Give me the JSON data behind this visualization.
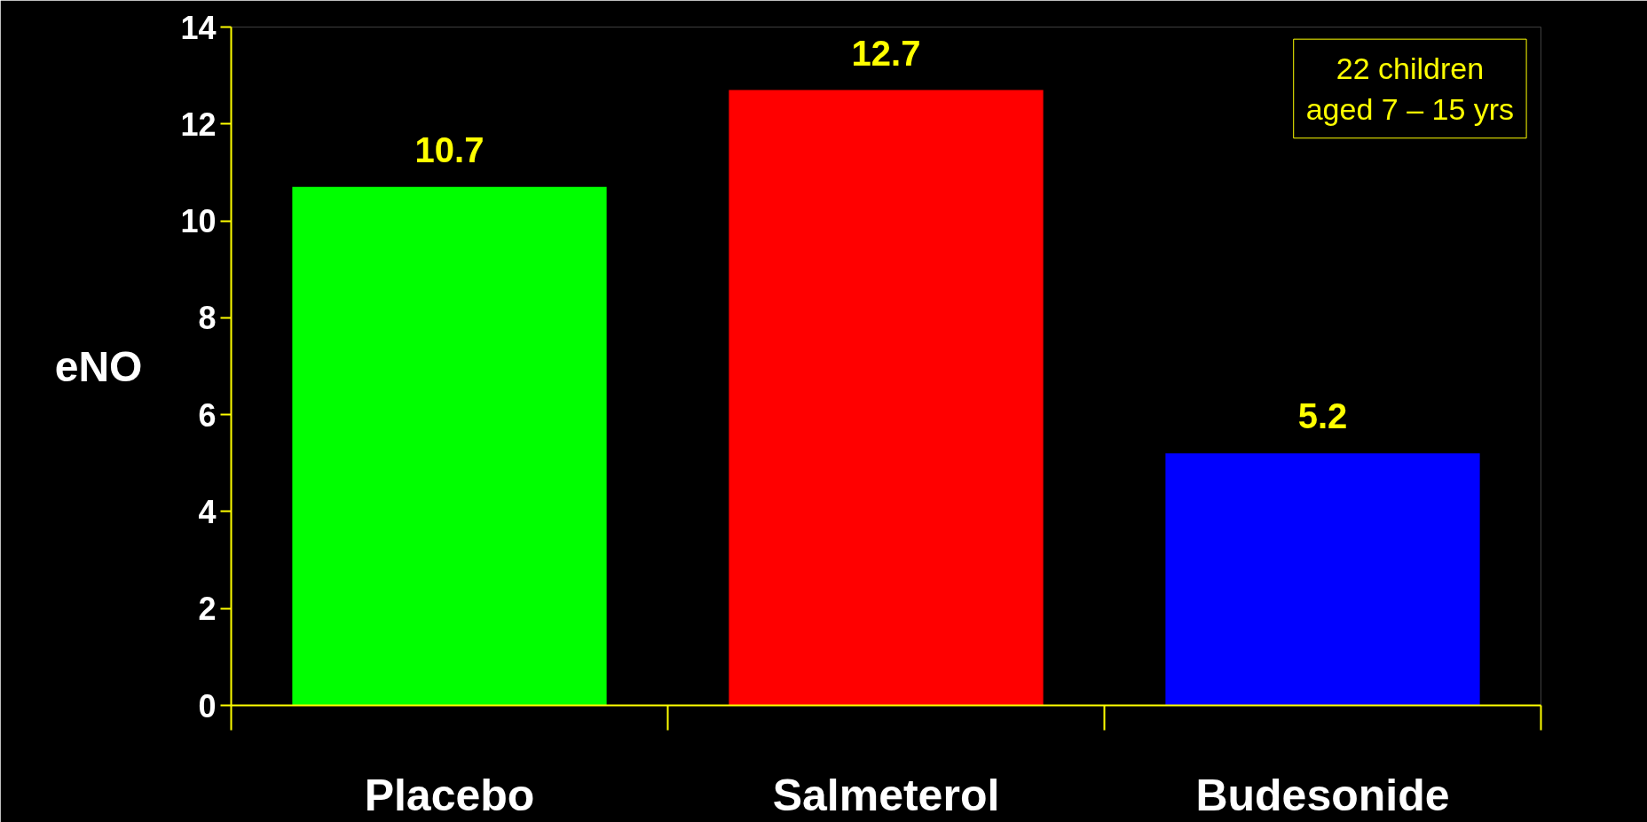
{
  "chart_data": {
    "type": "bar",
    "ylabel": "eNO",
    "categories": [
      "Placebo",
      "Salmeterol",
      "Budesonide"
    ],
    "values": [
      10.7,
      12.7,
      5.2
    ],
    "colors": [
      "#00ff00",
      "#ff0000",
      "#0000ff"
    ],
    "ylim": [
      0,
      14
    ],
    "yticks": [
      0,
      2,
      4,
      6,
      8,
      10,
      12,
      14
    ],
    "data_labels": true,
    "grid": false,
    "annotations": [
      "22 children\naged 7 – 15 yrs"
    ]
  }
}
